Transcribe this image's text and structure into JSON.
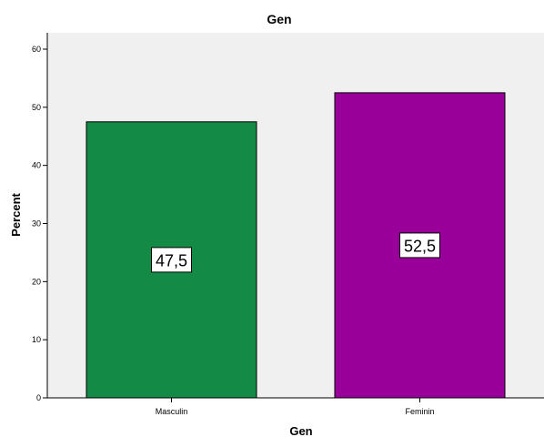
{
  "chart_data": {
    "type": "bar",
    "title": "Gen",
    "xlabel": "Gen",
    "ylabel": "Percent",
    "categories": [
      "Masculin",
      "Feminin"
    ],
    "values": [
      47.5,
      52.5
    ],
    "data_labels": [
      "47,5",
      "52,5"
    ],
    "bar_colors": [
      "#138a45",
      "#990099"
    ],
    "plot_background": "#f0f0f0",
    "ylim": [
      0,
      60
    ],
    "yticks": [
      0,
      10,
      20,
      30,
      40,
      50,
      60
    ],
    "ytick_labels": [
      "0",
      "10",
      "20",
      "30",
      "40",
      "50",
      "60"
    ],
    "grid": false,
    "legend": "none"
  }
}
